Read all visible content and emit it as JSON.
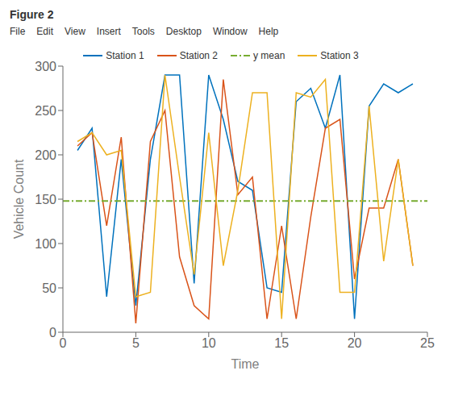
{
  "chart_data": {
    "type": "line",
    "title": "Figure 2",
    "annotations": [
      "File",
      "Edit",
      "View",
      "Insert",
      "Tools",
      "Desktop",
      "Window",
      "Help"
    ],
    "x_label": "Time",
    "y_label": "Vehicle Count",
    "x": [
      1,
      2,
      3,
      4,
      5,
      6,
      7,
      8,
      9,
      10,
      11,
      12,
      13,
      14,
      15,
      16,
      17,
      18,
      19,
      20,
      21,
      22,
      23,
      24
    ],
    "series": [
      {
        "name": "Station 1",
        "type": "line",
        "color": "#0072BD",
        "values": [
          205,
          230,
          40,
          195,
          30,
          195,
          290,
          290,
          55,
          290,
          240,
          170,
          160,
          50,
          45,
          260,
          275,
          230,
          290,
          15,
          255,
          280,
          270,
          280
        ]
      },
      {
        "name": "Station 2",
        "type": "line",
        "color": "#D95319",
        "values": [
          210,
          225,
          120,
          220,
          10,
          215,
          250,
          85,
          30,
          15,
          285,
          155,
          175,
          15,
          120,
          15,
          130,
          230,
          240,
          60,
          140,
          140,
          195,
          75
        ]
      },
      {
        "name": "y mean",
        "type": "hline",
        "color": "#77AC30",
        "line_style": "dashdot",
        "value": 148
      },
      {
        "name": "Station 3",
        "type": "line",
        "color": "#EDB120",
        "values": [
          215,
          225,
          200,
          205,
          40,
          45,
          290,
          175,
          65,
          225,
          75,
          160,
          270,
          270,
          15,
          270,
          265,
          285,
          45,
          45,
          255,
          80,
          195,
          75
        ]
      }
    ],
    "xlim": [
      0,
      25
    ],
    "ylim": [
      0,
      300
    ],
    "xticks": [
      0,
      5,
      10,
      15,
      20,
      25
    ],
    "yticks": [
      0,
      50,
      100,
      150,
      200,
      250,
      300
    ],
    "grid": false,
    "legend": "top"
  }
}
